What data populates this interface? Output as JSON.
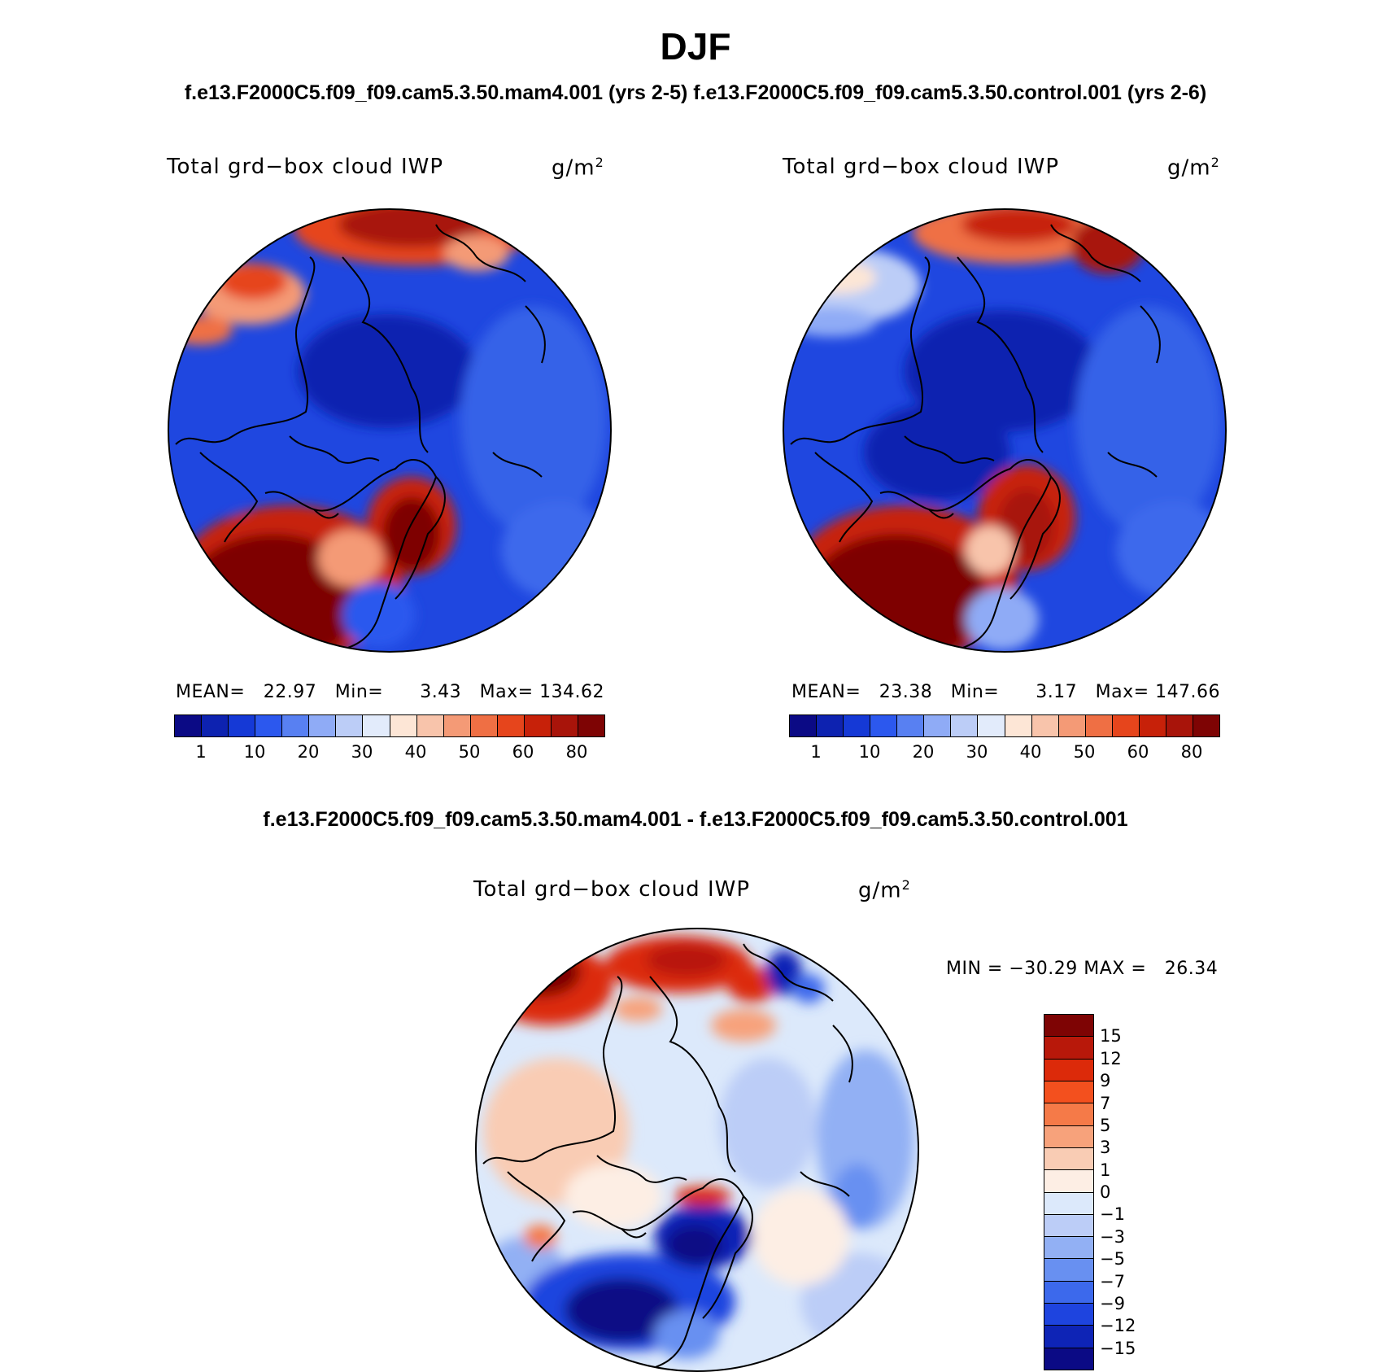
{
  "title": "DJF",
  "subtitle_top": "f.e13.F2000C5.f09_f09.cam5.3.50.mam4.001 (yrs 2-5) f.e13.F2000C5.f09_f09.cam5.3.50.control.001 (yrs 2-6)",
  "subtitle_diff": "f.e13.F2000C5.f09_f09.cam5.3.50.mam4.001 - f.e13.F2000C5.f09_f09.cam5.3.50.control.001",
  "panels": [
    {
      "label": "Total grd−box cloud IWP",
      "units": "g/m",
      "units_exp": "2",
      "stats": "MEAN=   22.97   Min=      3.43   Max= 134.62"
    },
    {
      "label": "Total grd−box cloud IWP",
      "units": "g/m",
      "units_exp": "2",
      "stats": "MEAN=   23.38   Min=      3.17   Max= 147.66"
    }
  ],
  "diff_panel": {
    "label": "Total grd−box cloud IWP",
    "units": "g/m",
    "units_exp": "2",
    "stats": "MIN = −30.29 MAX =   26.34"
  },
  "colorbar_abs": {
    "colors": [
      "#0b0a85",
      "#0d22b0",
      "#1539d6",
      "#2c58ee",
      "#5880f2",
      "#8fabf6",
      "#bccdf7",
      "#e2ebfb",
      "#fde6d6",
      "#f8c4ab",
      "#f49a76",
      "#ef6f44",
      "#e6451c",
      "#c72109",
      "#a8140a",
      "#7e0404"
    ],
    "labels": [
      "1",
      "10",
      "20",
      "30",
      "40",
      "50",
      "60",
      "80"
    ]
  },
  "colorbar_diff": {
    "colors": [
      "#7e0404",
      "#b8180a",
      "#dc2a0a",
      "#f3501e",
      "#f57a48",
      "#f7a27b",
      "#f9ccb4",
      "#fdeee4",
      "#dce9fb",
      "#bccdf7",
      "#92b0f4",
      "#6890f1",
      "#3c69ec",
      "#1e44df",
      "#0e24b6",
      "#0b0a85"
    ],
    "labels": [
      "15",
      "12",
      "9",
      "7",
      "5",
      "3",
      "1",
      "0",
      "−1",
      "−3",
      "−5",
      "−7",
      "−9",
      "−12",
      "−15"
    ]
  },
  "chart_data": [
    {
      "type": "heatmap",
      "title": "Total grd−box cloud IWP",
      "units": "g/m2",
      "season": "DJF",
      "case": "f.e13.F2000C5.f09_f09.cam5.3.50.mam4.001 (yrs 2-5)",
      "projection": "north polar stereographic",
      "mean": 22.97,
      "min": 3.43,
      "max": 134.62,
      "levels": [
        1,
        5,
        10,
        15,
        20,
        25,
        30,
        35,
        40,
        45,
        50,
        55,
        60,
        70,
        80
      ]
    },
    {
      "type": "heatmap",
      "title": "Total grd−box cloud IWP",
      "units": "g/m2",
      "season": "DJF",
      "case": "f.e13.F2000C5.f09_f09.cam5.3.50.control.001 (yrs 2-6)",
      "projection": "north polar stereographic",
      "mean": 23.38,
      "min": 3.17,
      "max": 147.66,
      "levels": [
        1,
        5,
        10,
        15,
        20,
        25,
        30,
        35,
        40,
        45,
        50,
        55,
        60,
        70,
        80
      ]
    },
    {
      "type": "heatmap",
      "title": "Total grd−box cloud IWP",
      "units": "g/m2",
      "season": "DJF",
      "case": "mam4.001 - control.001 difference",
      "projection": "north polar stereographic",
      "min": -30.29,
      "max": 26.34,
      "levels": [
        -15,
        -12,
        -9,
        -7,
        -5,
        -3,
        -1,
        0,
        1,
        3,
        5,
        7,
        9,
        12,
        15
      ]
    }
  ]
}
